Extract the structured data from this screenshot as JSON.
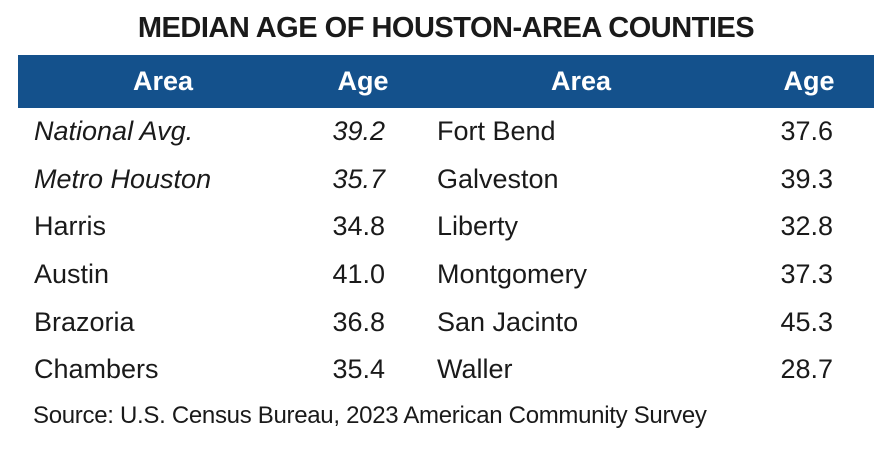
{
  "title": "MEDIAN AGE OF HOUSTON-AREA COUNTIES",
  "header": {
    "area_left": "Area",
    "age_left": "Age",
    "area_right": "Area",
    "age_right": "Age"
  },
  "rows": [
    {
      "area_left": "National Avg.",
      "age_left": "39.2",
      "emphasis": true,
      "area_right": "Fort Bend",
      "age_right": "37.6"
    },
    {
      "area_left": "Metro Houston",
      "age_left": "35.7",
      "emphasis": true,
      "area_right": "Galveston",
      "age_right": "39.3"
    },
    {
      "area_left": "Harris",
      "age_left": "34.8",
      "emphasis": false,
      "area_right": "Liberty",
      "age_right": "32.8"
    },
    {
      "area_left": "Austin",
      "age_left": "41.0",
      "emphasis": false,
      "area_right": "Montgomery",
      "age_right": "37.3"
    },
    {
      "area_left": "Brazoria",
      "age_left": "36.8",
      "emphasis": false,
      "area_right": "San Jacinto",
      "age_right": "45.3"
    },
    {
      "area_left": "Chambers",
      "age_left": "35.4",
      "emphasis": false,
      "area_right": "Waller",
      "age_right": "28.7"
    }
  ],
  "source": "Source: U.S. Census Bureau, 2023 American Community Survey",
  "colors": {
    "header_bg": "#14518C",
    "header_text": "#FFFFFF",
    "body_text": "#1A1A1A",
    "title_text": "#1A1A1A"
  },
  "chart_data": {
    "type": "table",
    "title": "MEDIAN AGE OF HOUSTON-AREA COUNTIES",
    "columns": [
      "Area",
      "Age"
    ],
    "rows": [
      [
        "National Avg.",
        39.2
      ],
      [
        "Metro Houston",
        35.7
      ],
      [
        "Harris",
        34.8
      ],
      [
        "Austin",
        41.0
      ],
      [
        "Brazoria",
        36.8
      ],
      [
        "Chambers",
        35.4
      ],
      [
        "Fort Bend",
        37.6
      ],
      [
        "Galveston",
        39.3
      ],
      [
        "Liberty",
        32.8
      ],
      [
        "Montgomery",
        37.3
      ],
      [
        "San Jacinto",
        45.3
      ],
      [
        "Waller",
        28.7
      ]
    ],
    "note": "Source: U.S. Census Bureau, 2023 American Community Survey",
    "layout": "two side-by-side Area/Age column pairs; National Avg. and Metro Houston rows italicized; blue header band; no gridlines"
  }
}
